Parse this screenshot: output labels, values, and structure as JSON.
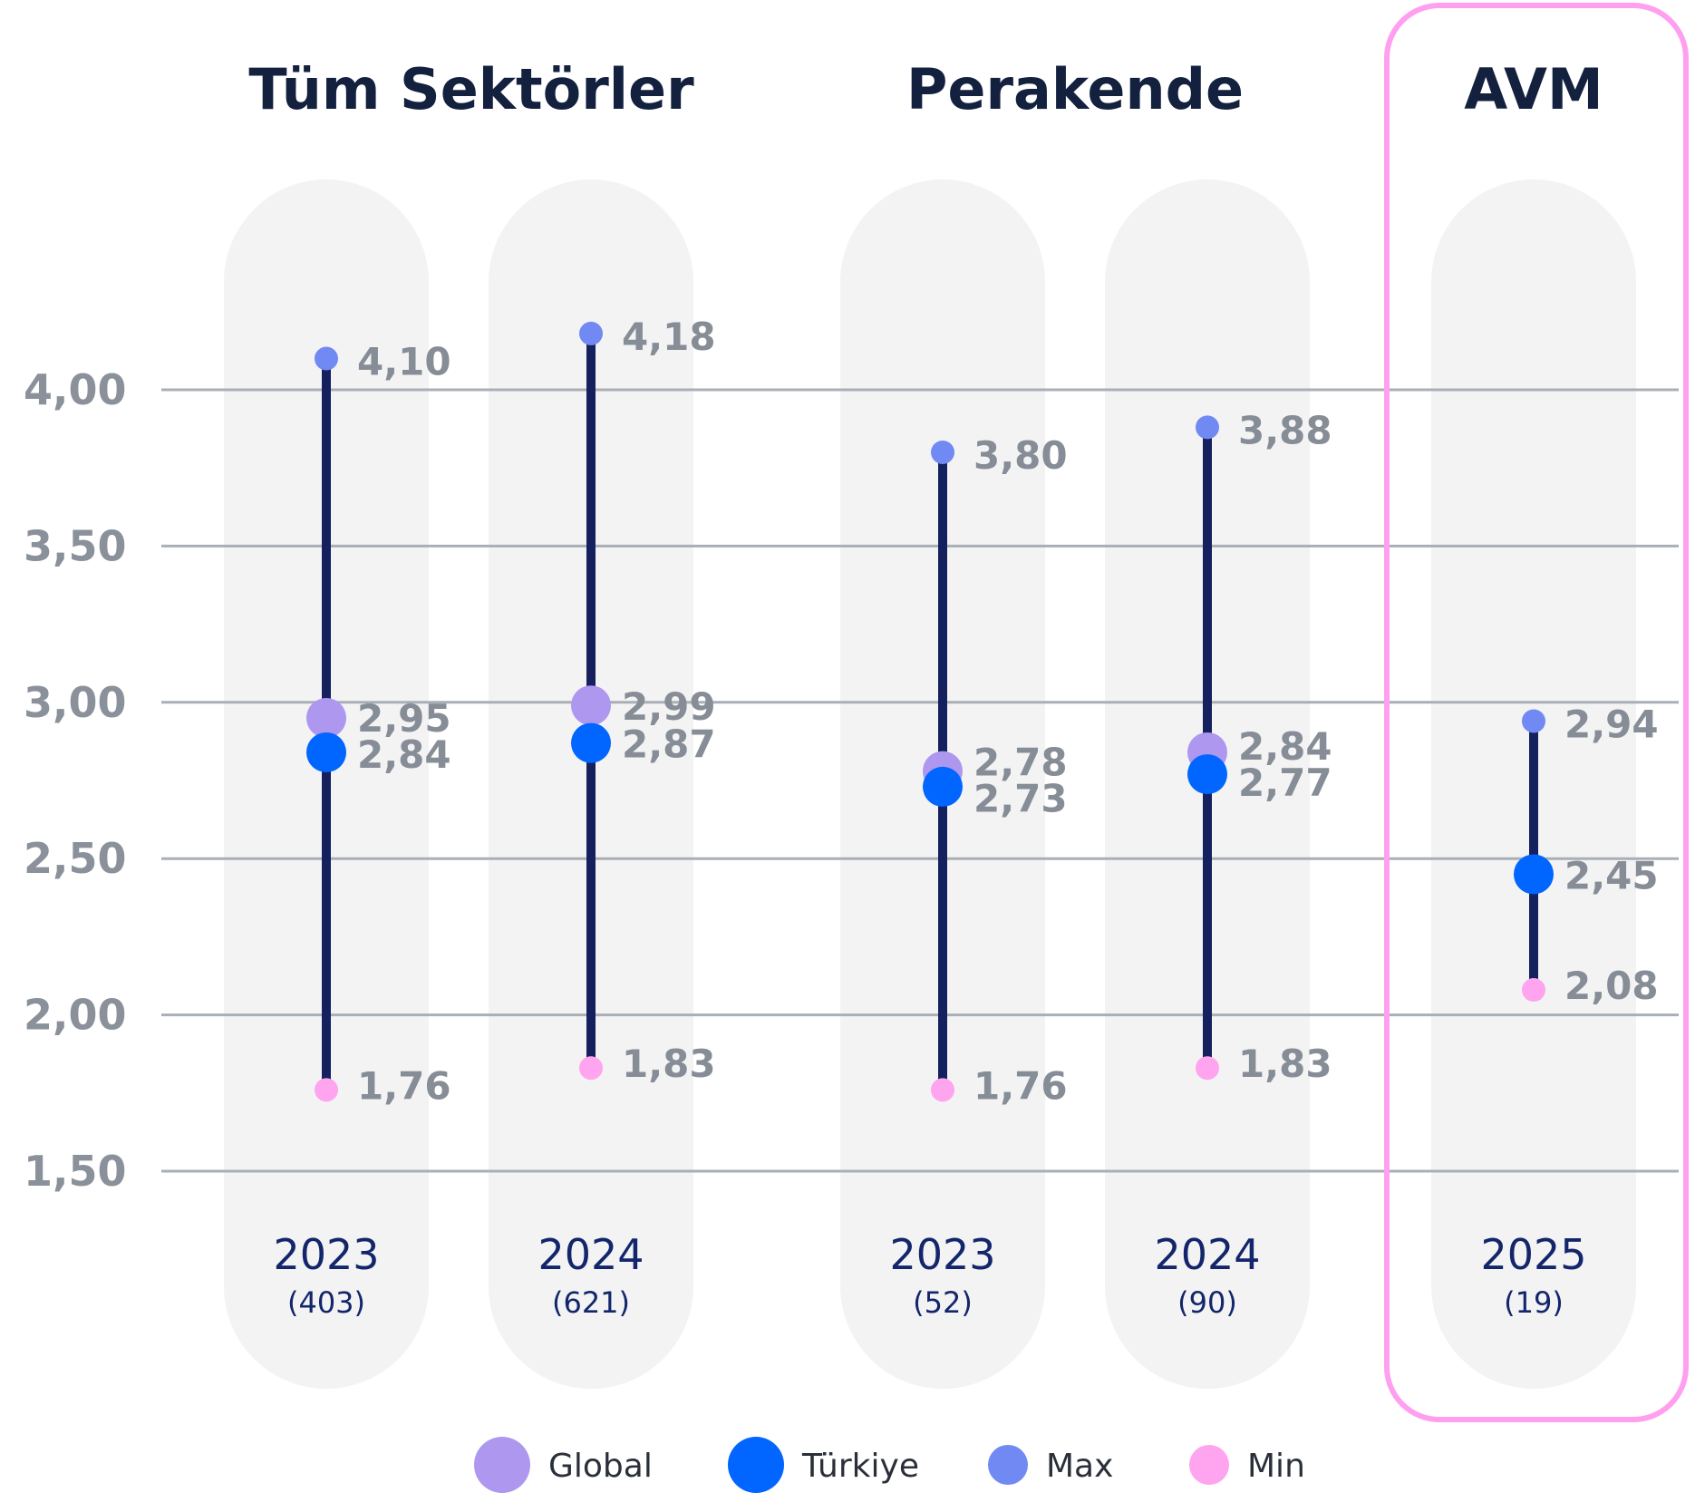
{
  "chart_data": {
    "type": "range",
    "groups": [
      {
        "title": "Tüm Sektörler",
        "highlighted": false
      },
      {
        "title": "Perakende",
        "highlighted": false
      },
      {
        "title": "AVM",
        "highlighted": true
      }
    ],
    "ylim": [
      1.5,
      4.0
    ],
    "yticks": [
      {
        "value": 4.0,
        "label": "4,00"
      },
      {
        "value": 3.5,
        "label": "3,50"
      },
      {
        "value": 3.0,
        "label": "3,00"
      },
      {
        "value": 2.5,
        "label": "2,50"
      },
      {
        "value": 2.0,
        "label": "2,00"
      },
      {
        "value": 1.5,
        "label": "1,50"
      }
    ],
    "grid": true,
    "columns": [
      {
        "group": 0,
        "year": "2023",
        "count": "(403)",
        "max": 4.1,
        "max_label": "4,10",
        "global": 2.95,
        "global_label": "2,95",
        "turkiye": 2.84,
        "turkiye_label": "2,84",
        "min": 1.76,
        "min_label": "1,76"
      },
      {
        "group": 0,
        "year": "2024",
        "count": "(621)",
        "max": 4.18,
        "max_label": "4,18",
        "global": 2.99,
        "global_label": "2,99",
        "turkiye": 2.87,
        "turkiye_label": "2,87",
        "min": 1.83,
        "min_label": "1,83"
      },
      {
        "group": 1,
        "year": "2023",
        "count": "(52)",
        "max": 3.8,
        "max_label": "3,80",
        "global": 2.78,
        "global_label": "2,78",
        "turkiye": 2.73,
        "turkiye_label": "2,73",
        "min": 1.76,
        "min_label": "1,76"
      },
      {
        "group": 1,
        "year": "2024",
        "count": "(90)",
        "max": 3.88,
        "max_label": "3,88",
        "global": 2.84,
        "global_label": "2,84",
        "turkiye": 2.77,
        "turkiye_label": "2,77",
        "min": 1.83,
        "min_label": "1,83"
      },
      {
        "group": 2,
        "year": "2025",
        "count": "(19)",
        "max": 2.94,
        "max_label": "2,94",
        "global": null,
        "global_label": "",
        "turkiye": 2.45,
        "turkiye_label": "2,45",
        "min": 2.08,
        "min_label": "2,08"
      }
    ],
    "legend": [
      {
        "key": "global",
        "label": "Global",
        "color": "#ae97ee"
      },
      {
        "key": "turkiye",
        "label": "Türkiye",
        "color": "#0066ff"
      },
      {
        "key": "max",
        "label": "Max",
        "color": "#7189f2"
      },
      {
        "key": "min",
        "label": "Min",
        "color": "#ffa4ee"
      }
    ],
    "legend_position": "bottom",
    "colors": {
      "range_line": "#14215e",
      "column_bg": "#f3f3f4",
      "grid": "#a9afb6",
      "highlight_border": "#ff9ff0"
    }
  }
}
